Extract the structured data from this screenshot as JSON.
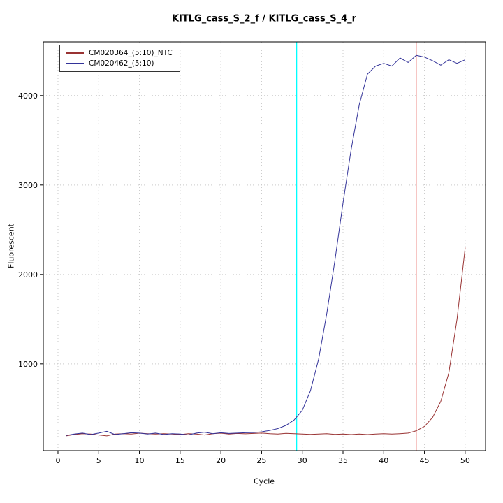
{
  "page": {
    "background": "#ffffff"
  },
  "chart": {
    "title": "KITLG_cass_S_2_f / KITLG_cass_S_4_r"
  },
  "chart_data": {
    "type": "line",
    "title": "KITLG_cass_S_2_f / KITLG_cass_S_4_r",
    "xlabel": "Cycle",
    "ylabel": "Fluorescent",
    "xlim": [
      -1.8,
      52.5
    ],
    "ylim": [
      30,
      4600
    ],
    "xticks": [
      0,
      5,
      10,
      15,
      20,
      25,
      30,
      35,
      40,
      45,
      50
    ],
    "yticks": [
      1000,
      2000,
      3000,
      4000
    ],
    "grid": true,
    "grid_style": "dotted",
    "legend_position": "top-left",
    "x": [
      1,
      2,
      3,
      4,
      5,
      6,
      7,
      8,
      9,
      10,
      11,
      12,
      13,
      14,
      15,
      16,
      17,
      18,
      19,
      20,
      21,
      22,
      23,
      24,
      25,
      26,
      27,
      28,
      29,
      30,
      31,
      32,
      33,
      34,
      35,
      36,
      37,
      38,
      39,
      40,
      41,
      42,
      43,
      44,
      45,
      46,
      47,
      48,
      49,
      50
    ],
    "series": [
      {
        "name": "CM020364_(5:10)_NTC",
        "color": "#993333",
        "values": [
          195,
          210,
          220,
          215,
          205,
          195,
          215,
          220,
          215,
          225,
          220,
          215,
          220,
          215,
          210,
          220,
          215,
          205,
          220,
          225,
          215,
          222,
          218,
          222,
          226,
          220,
          216,
          224,
          220,
          216,
          212,
          216,
          220,
          212,
          216,
          210,
          215,
          210,
          216,
          220,
          215,
          220,
          226,
          252,
          300,
          400,
          580,
          900,
          1500,
          2300
        ]
      },
      {
        "name": "CM020462_(5:10)",
        "color": "#333399",
        "values": [
          200,
          216,
          226,
          210,
          226,
          246,
          210,
          220,
          230,
          226,
          216,
          226,
          210,
          220,
          216,
          206,
          226,
          236,
          220,
          230,
          222,
          226,
          230,
          232,
          240,
          256,
          276,
          312,
          372,
          480,
          700,
          1050,
          1560,
          2150,
          2800,
          3400,
          3900,
          4240,
          4330,
          4360,
          4330,
          4420,
          4370,
          4450,
          4430,
          4390,
          4340,
          4400,
          4360,
          4400
        ]
      }
    ],
    "vlines": [
      {
        "x": 29.3,
        "color": "#00ffff",
        "width": 1.5
      },
      {
        "x": 44.0,
        "color": "#e97470",
        "width": 1
      }
    ]
  },
  "colors": {
    "grid": "#c9c9c9",
    "axis": "#000000",
    "box": "#000000"
  }
}
